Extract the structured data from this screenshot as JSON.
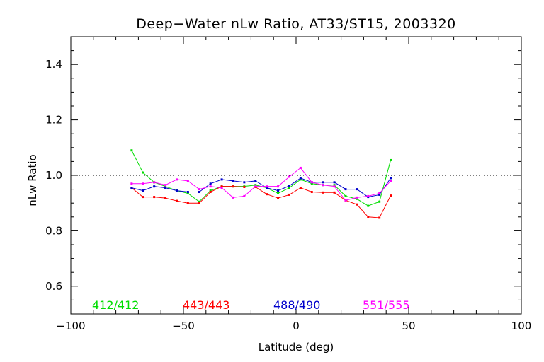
{
  "chart_data": {
    "type": "line",
    "title": "Deep−Water nLw Ratio, AT33/ST15, 2003320",
    "xlabel": "Latitude (deg)",
    "ylabel": "nLw Ratio",
    "xlim": [
      -100,
      100
    ],
    "ylim": [
      0.5,
      1.5
    ],
    "xticks": [
      -100,
      -50,
      0,
      50,
      100
    ],
    "xtick_labels": [
      "−100",
      "−50",
      "0",
      "50",
      "100"
    ],
    "yticks": [
      0.6,
      0.8,
      1.0,
      1.2,
      1.4
    ],
    "ytick_labels": [
      "0.6",
      "0.8",
      "1.0",
      "1.2",
      "1.4"
    ],
    "reference_line": {
      "y": 1.0,
      "style": "dotted"
    },
    "grid": false,
    "legend_placement": "bottom (inside plot, horizontal)",
    "x": [
      -73,
      -68,
      -63,
      -58,
      -53,
      -48,
      -43,
      -38,
      -33,
      -28,
      -23,
      -18,
      -13,
      -8,
      -3,
      2,
      7,
      12,
      17,
      22,
      27,
      32,
      37,
      42
    ],
    "series": [
      {
        "name": "412/412",
        "color": "#00dd00",
        "values": [
          1.09,
          1.01,
          0.975,
          0.96,
          0.945,
          0.935,
          0.905,
          0.945,
          0.96,
          0.96,
          0.96,
          0.965,
          0.955,
          0.935,
          0.955,
          0.985,
          0.97,
          0.965,
          0.965,
          0.925,
          0.915,
          0.89,
          0.905,
          1.055
        ]
      },
      {
        "name": "443/443",
        "color": "#ff0000",
        "values": [
          0.955,
          0.922,
          0.922,
          0.918,
          0.908,
          0.9,
          0.9,
          0.94,
          0.96,
          0.96,
          0.958,
          0.958,
          0.932,
          0.918,
          0.93,
          0.955,
          0.94,
          0.938,
          0.938,
          0.91,
          0.895,
          0.85,
          0.847,
          0.927
        ]
      },
      {
        "name": "488/490",
        "color": "#0000cc",
        "values": [
          0.955,
          0.945,
          0.96,
          0.955,
          0.945,
          0.94,
          0.94,
          0.97,
          0.985,
          0.98,
          0.975,
          0.98,
          0.955,
          0.945,
          0.962,
          0.99,
          0.975,
          0.975,
          0.975,
          0.95,
          0.95,
          0.922,
          0.93,
          0.99
        ]
      },
      {
        "name": "551/555",
        "color": "#ff00ff",
        "values": [
          0.97,
          0.97,
          0.975,
          0.965,
          0.985,
          0.98,
          0.95,
          0.96,
          0.955,
          0.92,
          0.925,
          0.96,
          0.96,
          0.96,
          0.995,
          1.027,
          0.975,
          0.965,
          0.96,
          0.91,
          0.92,
          0.925,
          0.935,
          0.98
        ]
      }
    ]
  }
}
